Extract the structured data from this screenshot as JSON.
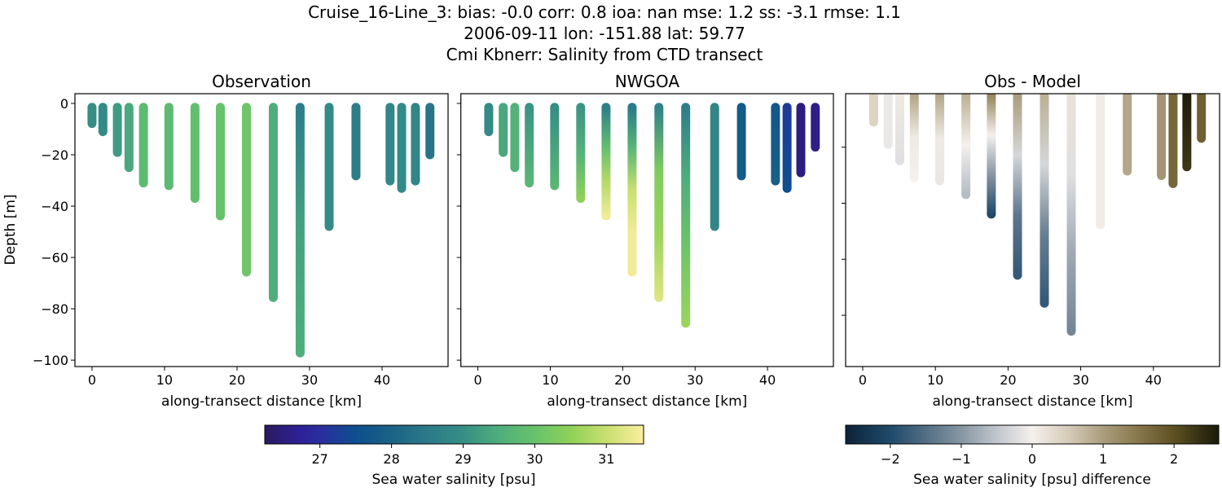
{
  "figure": {
    "title_lines": [
      "Cruise_16-Line_3: bias: -0.0  corr: 0.8  ioa: nan  mse: 1.2  ss: -3.1  rmse: 1.1",
      "2006-09-11 lon: -151.88 lat: 59.77",
      "Cmi Kbnerr: Salinity from CTD transect"
    ]
  },
  "colorbars": {
    "salinity": {
      "label": "Sea water salinity [psu]",
      "range": [
        26.23,
        31.52
      ],
      "ticks": [
        27,
        28,
        29,
        30,
        31
      ],
      "tick_labels": [
        "27",
        "28",
        "29",
        "30",
        "31"
      ],
      "colors": [
        [
          26.23,
          "#2a1b5e"
        ],
        [
          26.7,
          "#2e1f95"
        ],
        [
          27.0,
          "#2a2ea0"
        ],
        [
          27.5,
          "#0e4e8e"
        ],
        [
          28.0,
          "#1a6385"
        ],
        [
          28.5,
          "#2b7a8a"
        ],
        [
          29.0,
          "#368e85"
        ],
        [
          29.5,
          "#4fae7c"
        ],
        [
          30.0,
          "#67c26c"
        ],
        [
          30.5,
          "#8fd158"
        ],
        [
          31.0,
          "#c7df70"
        ],
        [
          31.52,
          "#fcee9f"
        ]
      ]
    },
    "difference": {
      "label": "Sea water salinity [psu] difference",
      "range": [
        -2.63,
        2.63
      ],
      "ticks": [
        -2,
        -1,
        0,
        1,
        2
      ],
      "tick_labels": [
        "−2",
        "−1",
        "0",
        "1",
        "2"
      ],
      "colors": [
        [
          -2.63,
          "#0d2238"
        ],
        [
          -2.0,
          "#1f4a6a"
        ],
        [
          -1.5,
          "#536e85"
        ],
        [
          -1.0,
          "#8796a3"
        ],
        [
          -0.5,
          "#c1c6cc"
        ],
        [
          0.0,
          "#f4f0ed"
        ],
        [
          0.5,
          "#d6ccb9"
        ],
        [
          1.0,
          "#aa9d7d"
        ],
        [
          1.5,
          "#87774b"
        ],
        [
          2.0,
          "#5d5022"
        ],
        [
          2.63,
          "#1a1a0a"
        ]
      ]
    }
  },
  "chart_data": [
    {
      "type": "scatter",
      "title": "Observation",
      "xlabel": "along-transect distance [km]",
      "ylabel": "Depth [m]",
      "xlim": [
        -2.35,
        49.1
      ],
      "ylim": [
        -102.5,
        3.8
      ],
      "xticks": [
        0,
        10,
        20,
        30,
        40
      ],
      "xtick_labels": [
        "0",
        "10",
        "20",
        "30",
        "40"
      ],
      "yticks": [
        0,
        -20,
        -40,
        -60,
        -80,
        -100
      ],
      "ytick_labels": [
        "0",
        "−20",
        "−40",
        "−60",
        "−80",
        "−100"
      ],
      "colorbar": "salinity",
      "columns": [
        {
          "x": 0,
          "max_depth": 7.8,
          "values": [
            29.0
          ]
        },
        {
          "x": 1.5,
          "max_depth": 11,
          "values": [
            28.9
          ]
        },
        {
          "x": 3.5,
          "max_depth": 19.1,
          "values": [
            29.2
          ]
        },
        {
          "x": 5.1,
          "max_depth": 25,
          "values": [
            29.4
          ]
        },
        {
          "x": 7.1,
          "max_depth": 31,
          "values": [
            29.8
          ]
        },
        {
          "x": 10.6,
          "max_depth": 32,
          "values": [
            29.8
          ]
        },
        {
          "x": 14.2,
          "max_depth": 37,
          "values": [
            29.9
          ]
        },
        {
          "x": 17.7,
          "max_depth": 43.8,
          "values": [
            30.0
          ]
        },
        {
          "x": 21.3,
          "max_depth": 65.7,
          "values": [
            30.1
          ]
        },
        {
          "x": 25.0,
          "max_depth": 75.6,
          "values": [
            29.5
          ]
        },
        {
          "x": 28.7,
          "max_depth": 97.2,
          "values": [
            28.6,
            29.3,
            29.5
          ]
        },
        {
          "x": 32.7,
          "max_depth": 47.9,
          "values": [
            28.9
          ]
        },
        {
          "x": 36.4,
          "max_depth": 28.2,
          "values": [
            28.6
          ]
        },
        {
          "x": 41.1,
          "max_depth": 30.2,
          "values": [
            28.8
          ]
        },
        {
          "x": 42.7,
          "max_depth": 33.1,
          "values": [
            28.9
          ]
        },
        {
          "x": 44.6,
          "max_depth": 30.2,
          "values": [
            28.8
          ]
        },
        {
          "x": 46.6,
          "max_depth": 20,
          "values": [
            28.4
          ]
        }
      ]
    },
    {
      "type": "scatter",
      "title": "NWGOA",
      "xlabel": "along-transect distance [km]",
      "xlim": [
        -2.35,
        49.1
      ],
      "ylim": [
        -102.5,
        3.8
      ],
      "xticks": [
        0,
        10,
        20,
        30,
        40
      ],
      "xtick_labels": [
        "0",
        "10",
        "20",
        "30",
        "40"
      ],
      "yticks": [
        0,
        -20,
        -40,
        -60,
        -80,
        -100
      ],
      "colorbar": "salinity",
      "columns": [
        {
          "x": 1.5,
          "max_depth": 11,
          "values": [
            28.9
          ]
        },
        {
          "x": 3.5,
          "max_depth": 19.1,
          "values": [
            29.4
          ]
        },
        {
          "x": 5.1,
          "max_depth": 25,
          "values": [
            29.6
          ]
        },
        {
          "x": 7.1,
          "max_depth": 31,
          "values": [
            29.1,
            29.7
          ]
        },
        {
          "x": 10.6,
          "max_depth": 32,
          "values": [
            29.0,
            29.7
          ]
        },
        {
          "x": 14.2,
          "max_depth": 37,
          "values": [
            29.1,
            29.6,
            30.5
          ]
        },
        {
          "x": 17.7,
          "max_depth": 43.8,
          "values": [
            28.6,
            29.8,
            30.8,
            31.4
          ]
        },
        {
          "x": 21.3,
          "max_depth": 65.7,
          "values": [
            28.5,
            29.7,
            31.0,
            31.4,
            31.4
          ]
        },
        {
          "x": 25.0,
          "max_depth": 75.6,
          "values": [
            28.7,
            30.3,
            30.6,
            31.2
          ]
        },
        {
          "x": 28.7,
          "max_depth": 85.6,
          "values": [
            28.6,
            29.5,
            30.1,
            30.6
          ]
        },
        {
          "x": 32.7,
          "max_depth": 47.9,
          "values": [
            28.8
          ]
        },
        {
          "x": 36.4,
          "max_depth": 28.2,
          "values": [
            27.8
          ]
        },
        {
          "x": 41.1,
          "max_depth": 30.2,
          "values": [
            27.7,
            27.9
          ]
        },
        {
          "x": 42.7,
          "max_depth": 33.1,
          "values": [
            27.2,
            27.5
          ]
        },
        {
          "x": 44.6,
          "max_depth": 27,
          "values": [
            26.5
          ]
        },
        {
          "x": 46.6,
          "max_depth": 17,
          "values": [
            26.6
          ]
        }
      ]
    },
    {
      "type": "scatter",
      "title": "Obs - Model",
      "xlabel": "along-transect distance [km]",
      "xlim": [
        -2.35,
        49.1
      ],
      "ylim": [
        -98.3,
        -0.9
      ],
      "xticks": [
        0,
        10,
        20,
        30,
        40
      ],
      "xtick_labels": [
        "0",
        "10",
        "20",
        "30",
        "40"
      ],
      "yticks": [
        -20,
        -40,
        -60,
        -80
      ],
      "colorbar": "difference",
      "columns": [
        {
          "x": 1.5,
          "max_depth": 11,
          "values": [
            0.4
          ]
        },
        {
          "x": 3.5,
          "max_depth": 19,
          "values": [
            -0.1
          ]
        },
        {
          "x": 5.1,
          "max_depth": 24.8,
          "values": [
            0.1,
            -0.2
          ]
        },
        {
          "x": 7.1,
          "max_depth": 30.8,
          "values": [
            0.9,
            0.1,
            0.0
          ]
        },
        {
          "x": 10.6,
          "max_depth": 32,
          "values": [
            0.9,
            0.1,
            -0.1
          ]
        },
        {
          "x": 14.2,
          "max_depth": 36.9,
          "values": [
            0.8,
            0.0,
            -0.6
          ]
        },
        {
          "x": 17.7,
          "max_depth": 43.9,
          "values": [
            1.3,
            0.0,
            -1.0,
            -2.0
          ]
        },
        {
          "x": 21.3,
          "max_depth": 65.7,
          "values": [
            1.0,
            -0.3,
            -1.4,
            -1.8
          ]
        },
        {
          "x": 25.0,
          "max_depth": 75.7,
          "values": [
            0.8,
            -0.3,
            -1.3,
            -1.8
          ]
        },
        {
          "x": 28.7,
          "max_depth": 85.7,
          "values": [
            0.2,
            -0.2,
            -0.8,
            -1.2
          ]
        },
        {
          "x": 32.7,
          "max_depth": 47.7,
          "values": [
            0.05
          ]
        },
        {
          "x": 36.4,
          "max_depth": 28.5,
          "values": [
            0.9
          ]
        },
        {
          "x": 41.1,
          "max_depth": 30.1,
          "values": [
            1.1
          ]
        },
        {
          "x": 42.7,
          "max_depth": 33,
          "values": [
            1.7
          ]
        },
        {
          "x": 44.6,
          "max_depth": 27,
          "values": [
            2.6,
            2.3
          ]
        },
        {
          "x": 46.6,
          "max_depth": 16.8,
          "values": [
            1.8
          ]
        }
      ]
    }
  ]
}
